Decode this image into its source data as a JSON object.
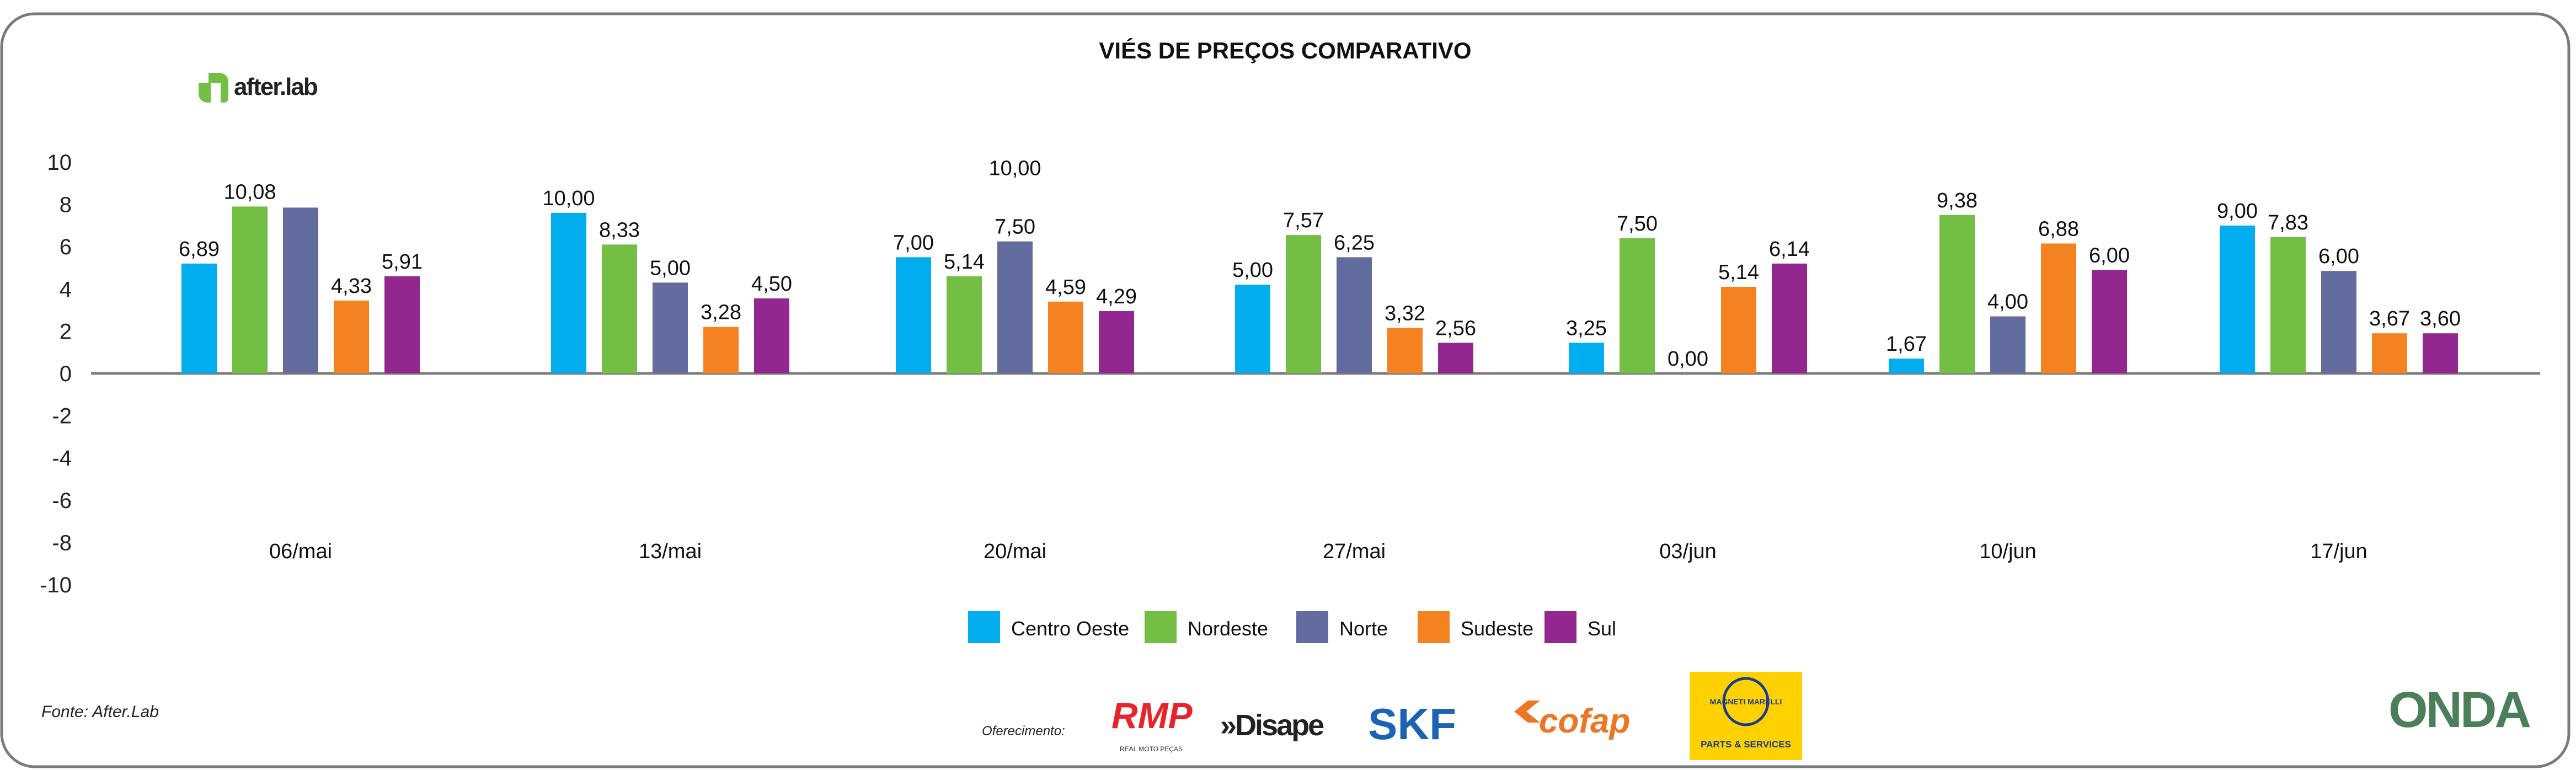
{
  "chart_data": {
    "type": "bar",
    "title": "VIÉS DE PREÇOS COMPARATIVO",
    "xlabel": "",
    "ylabel": "",
    "ylim": [
      -10,
      10
    ],
    "yticks": [
      10,
      8,
      6,
      4,
      2,
      0,
      -2,
      -4,
      -6,
      -8,
      -10
    ],
    "grid": false,
    "legend_position": "bottom-center",
    "categories": [
      "06/mai",
      "13/mai",
      "20/mai",
      "27/mai",
      "03/jun",
      "10/jun",
      "17/jun"
    ],
    "series": [
      {
        "name": "Centro Oeste",
        "color": "#00AEEF",
        "values": [
          5.2,
          7.6,
          5.5,
          4.2,
          1.45,
          0.7,
          7.0
        ],
        "labels": [
          "6,89",
          "10,00",
          "7,00",
          "5,00",
          "3,25",
          "1,67",
          "9,00"
        ]
      },
      {
        "name": "Nordeste",
        "color": "#72BF44",
        "values": [
          7.9,
          6.1,
          4.6,
          6.55,
          6.4,
          7.5,
          6.45
        ],
        "labels": [
          "10,08",
          "8,33",
          "5,14",
          "7,57",
          "7,50",
          "9,38",
          "7,83"
        ]
      },
      {
        "name": "Norte",
        "color": "#626C9E",
        "values": [
          7.85,
          4.3,
          6.25,
          5.5,
          0,
          2.7,
          4.85
        ],
        "labels": [
          "",
          "5,00",
          "10,00",
          "6,25",
          "0,00",
          "4,00",
          "6,00"
        ],
        "secondary_labels": [
          "",
          "",
          "7,50",
          "",
          "",
          "",
          ""
        ]
      },
      {
        "name": "Sudeste",
        "color": "#F58220",
        "values": [
          3.45,
          2.2,
          3.4,
          2.15,
          4.1,
          6.15,
          1.9
        ],
        "labels": [
          "4,33",
          "3,28",
          "4,59",
          "3,32",
          "5,14",
          "6,88",
          "3,67"
        ]
      },
      {
        "name": "Sul",
        "color": "#92278F",
        "values": [
          4.6,
          3.55,
          2.95,
          1.45,
          5.2,
          4.9,
          1.9
        ],
        "labels": [
          "5,91",
          "4,50",
          "4,29",
          "2,56",
          "6,14",
          "6,00",
          "3,60"
        ]
      }
    ]
  },
  "branding": {
    "logo_text": "after.lab",
    "source": "Fonte: After.Lab",
    "sponsor_label": "Oferecimento:",
    "sponsors": [
      "RMP",
      "Disape",
      "SKF",
      "cofap",
      "MAGNETI MARELLI"
    ],
    "sponsor_sub": {
      "rmp": "REAL MOTO PEÇAS",
      "magneti": "PARTS & SERVICES"
    },
    "onda": "ONDA"
  }
}
